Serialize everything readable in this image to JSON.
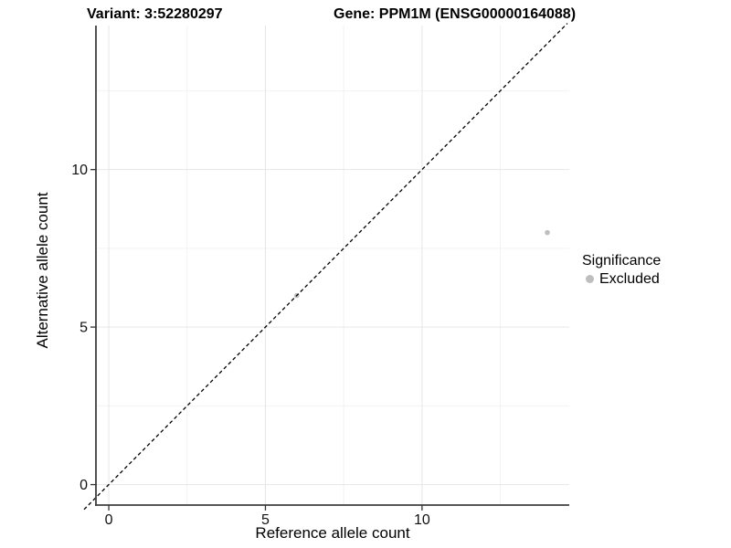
{
  "chart_data": {
    "type": "scatter",
    "variant_title": "Variant: 3:52280297",
    "gene_title": "Gene: PPM1M (ENSG00000164088)",
    "xlabel": "Reference allele count",
    "ylabel": "Alternative allele count",
    "xlim": [
      -0.41,
      14.7
    ],
    "ylim": [
      -0.65,
      14.57
    ],
    "x_ticks": [
      0,
      5,
      10
    ],
    "y_ticks": [
      0,
      5,
      10
    ],
    "x_tick_labels": [
      "0",
      "5",
      "10"
    ],
    "y_tick_labels": [
      "0",
      "5",
      "10"
    ],
    "x_minor_ticks": [
      2.5,
      7.5,
      12.5
    ],
    "y_minor_ticks": [
      2.5,
      7.5,
      12.5
    ],
    "grid": true,
    "identity_line": {
      "slope": 1,
      "intercept": 0,
      "style": "dashed",
      "color": "#000000"
    },
    "series": [
      {
        "name": "Excluded",
        "color": "#bebebe",
        "points": [
          {
            "x": 6,
            "y": 6
          },
          {
            "x": 14,
            "y": 8
          }
        ]
      }
    ],
    "legend": {
      "title": "Significance",
      "position": "right",
      "items": [
        {
          "label": "Excluded",
          "color": "#bebebe"
        }
      ]
    },
    "colors": {
      "grid_major": "#e6e6e6",
      "grid_minor": "#f2f2f2",
      "axis_line": "#3f3f3f",
      "tick_mark": "#333333",
      "tick_text": "#111111"
    }
  }
}
